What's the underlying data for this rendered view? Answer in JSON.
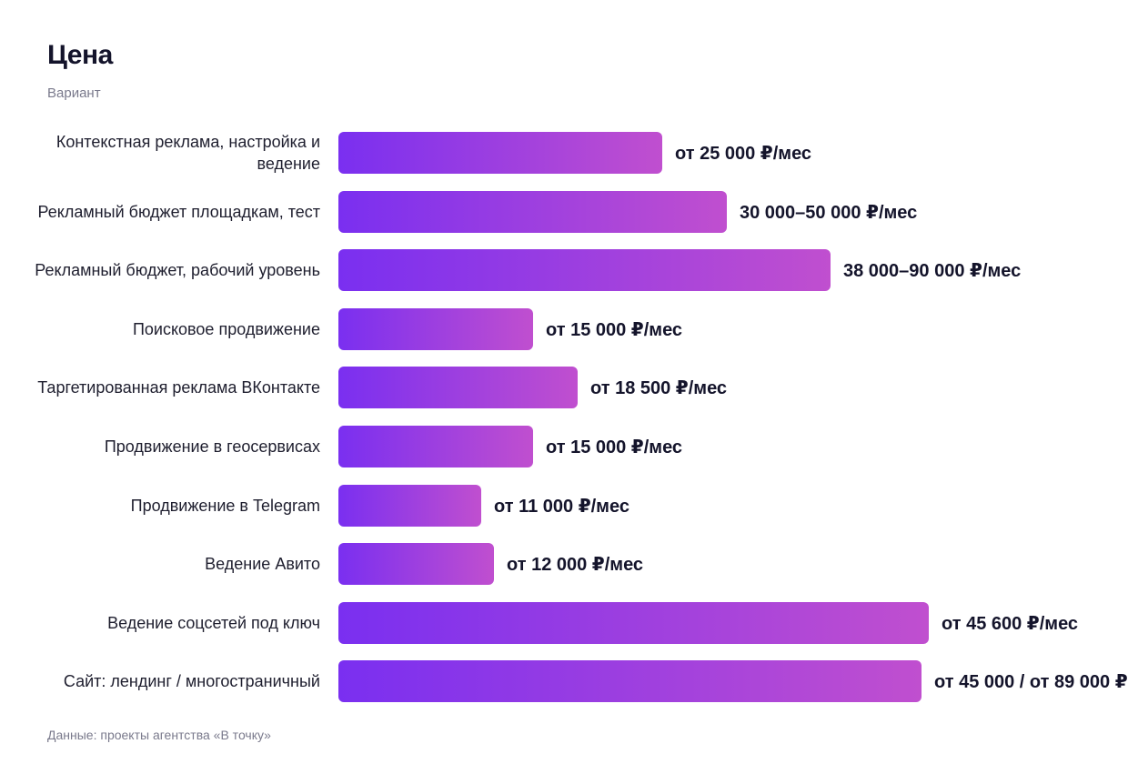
{
  "chart_data": {
    "type": "bar",
    "orientation": "horizontal",
    "title": "Цена",
    "subtitle": "Вариант",
    "source": "Данные: проекты агентства «В точку»",
    "categories": [
      "Контекстная реклама, настройка и ведение",
      "Рекламный бюджет площадкам, тест",
      "Рекламный бюджет, рабочий уровень",
      "Поисковое продвижение",
      "Таргетированная реклама ВКонтакте",
      "Продвижение в геосервисах",
      "Продвижение в Telegram",
      "Ведение Авито",
      "Ведение соцсетей под ключ",
      "Сайт: лендинг / многостраничный"
    ],
    "values": [
      25000,
      30000,
      38000,
      15000,
      18500,
      15000,
      11000,
      12000,
      45600,
      45000
    ],
    "value_labels": [
      "от 25 000 ₽/мес",
      "30 000–50 000 ₽/мес",
      "38 000–90 000 ₽/мес",
      "от 15 000 ₽/мес",
      "от 18 500 ₽/мес",
      "от 15 000 ₽/мес",
      "от 11 000 ₽/мес",
      "от 12 000 ₽/мес",
      "от 45 600 ₽/мес",
      "от 45 000 / от 89 000 ₽"
    ],
    "xlim": [
      0,
      60000
    ],
    "grid": false,
    "legend": "none",
    "colors": {
      "bar_start": "#7a2ff0",
      "bar_end": "#c04fcf"
    }
  }
}
